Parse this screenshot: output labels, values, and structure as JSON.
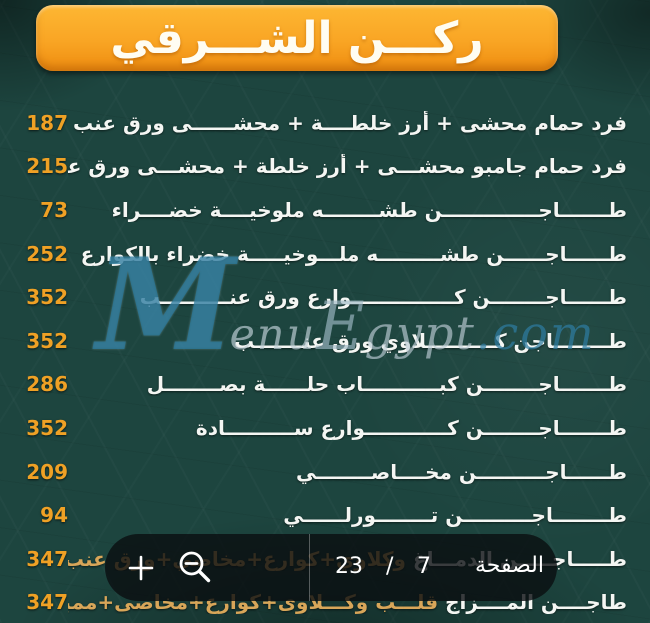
{
  "header": {
    "title": "ركـــن الشـــرقي"
  },
  "menu": {
    "items": [
      {
        "name": "فرد حمام محشى + أرز خلطــــة + محشــــــى ورق عنب + سلطة",
        "extra": "",
        "price": "187"
      },
      {
        "name": "فرد حمام جامبو محشـــى + أرز خلطة + محشـــى ورق عنب + سلطة",
        "extra": "",
        "price": "215"
      },
      {
        "name": "طـــــــاجــــــــــــــن طشــــــــه ملوخيــــة خضــــراء",
        "extra": "",
        "price": "73"
      },
      {
        "name": "طــــــاجــــــن طشـــــــــه ملـــوخيـــــة خضراء بالكوارع",
        "extra": "",
        "price": "252"
      },
      {
        "name": "طــــــاجــــــــن كـــــــــــــــوارع ورق عنــــــــــب",
        "extra": "",
        "price": "352"
      },
      {
        "name": "طــــــــاجن كــــــــــلاوي ورق عنـــــــب",
        "extra": "",
        "price": "352"
      },
      {
        "name": "طـــــــاجــــــــن كبـــــــــــاب حلــــــة بصــــــــل",
        "extra": "",
        "price": "286"
      },
      {
        "name": "طـــــــاجــــــــن كــــــــــــوارع ســــــــــادة",
        "extra": "",
        "price": "352"
      },
      {
        "name": "طــــــاجــــــــــن مخــــاصــــــــي",
        "extra": "",
        "price": "209"
      },
      {
        "name": "طــــــــاجــــــــــن تــــــــورلــــــي",
        "extra": "",
        "price": "94"
      },
      {
        "name": "طـــــاجـــــن الدمـــاغ ",
        "extra": "وكلاوي+كوارع+مخاصي+ورق عنب",
        "price": "347"
      },
      {
        "name": "طاجــــن المــــزاج ",
        "extra": "قلـــب وكـــلاوى+كوارع+مخاصى+ممبار",
        "price": "347"
      }
    ]
  },
  "watermark": {
    "m": "M",
    "enu": "enu",
    "e": "E",
    "gypt": "gypt",
    "dotcom": ".com"
  },
  "toolbar": {
    "zoom_in_icon": "plus-icon",
    "zoom_out_icon": "magnifier-minus-icon",
    "total_pages": "23",
    "separator": "/",
    "current_page": "7",
    "page_label": "الصفحة"
  },
  "colors": {
    "background": "#1d453f",
    "badge_top": "#fdb733",
    "badge_bottom": "#ef8d10",
    "price": "#efa125",
    "item_text": "#f4f6f3",
    "extra_text": "#d8a659",
    "watermark_blue": "#287899",
    "toolbar_bg": "rgba(10,14,16,0.80)"
  }
}
